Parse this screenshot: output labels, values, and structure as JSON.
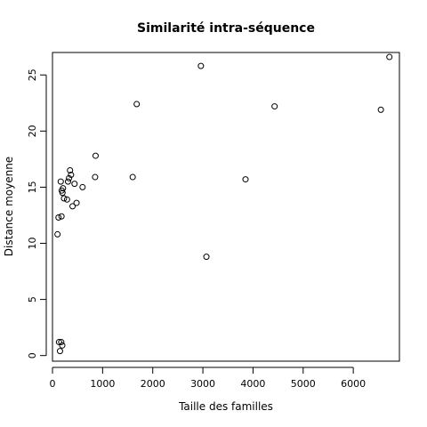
{
  "chart_data": {
    "type": "scatter",
    "title": "Similarité intra-séquence",
    "xlabel": "Taille des familles",
    "ylabel": "Distance moyenne",
    "xlim": [
      0,
      6920
    ],
    "ylim": [
      -0.5,
      27.0
    ],
    "xticks": [
      0,
      1000,
      2000,
      3000,
      4000,
      5000,
      6000
    ],
    "yticks": [
      0,
      5,
      10,
      15,
      20,
      25
    ],
    "grid": false,
    "marker": "open-circle",
    "points": [
      {
        "x": 100,
        "y": 10.8
      },
      {
        "x": 120,
        "y": 12.3
      },
      {
        "x": 130,
        "y": 1.2
      },
      {
        "x": 150,
        "y": 0.4
      },
      {
        "x": 165,
        "y": 15.5
      },
      {
        "x": 175,
        "y": 1.2
      },
      {
        "x": 180,
        "y": 12.4
      },
      {
        "x": 185,
        "y": 14.7
      },
      {
        "x": 195,
        "y": 0.9
      },
      {
        "x": 200,
        "y": 14.5
      },
      {
        "x": 210,
        "y": 14.9
      },
      {
        "x": 230,
        "y": 14.0
      },
      {
        "x": 290,
        "y": 13.9
      },
      {
        "x": 310,
        "y": 15.5
      },
      {
        "x": 330,
        "y": 15.8
      },
      {
        "x": 350,
        "y": 16.5
      },
      {
        "x": 370,
        "y": 16.1
      },
      {
        "x": 400,
        "y": 13.3
      },
      {
        "x": 440,
        "y": 15.3
      },
      {
        "x": 480,
        "y": 13.6
      },
      {
        "x": 600,
        "y": 15.0
      },
      {
        "x": 850,
        "y": 15.9
      },
      {
        "x": 860,
        "y": 17.8
      },
      {
        "x": 1600,
        "y": 15.9
      },
      {
        "x": 1680,
        "y": 22.4
      },
      {
        "x": 2960,
        "y": 25.8
      },
      {
        "x": 3070,
        "y": 8.8
      },
      {
        "x": 3850,
        "y": 15.7
      },
      {
        "x": 4430,
        "y": 22.2
      },
      {
        "x": 6550,
        "y": 21.9
      },
      {
        "x": 6720,
        "y": 26.6
      }
    ]
  }
}
